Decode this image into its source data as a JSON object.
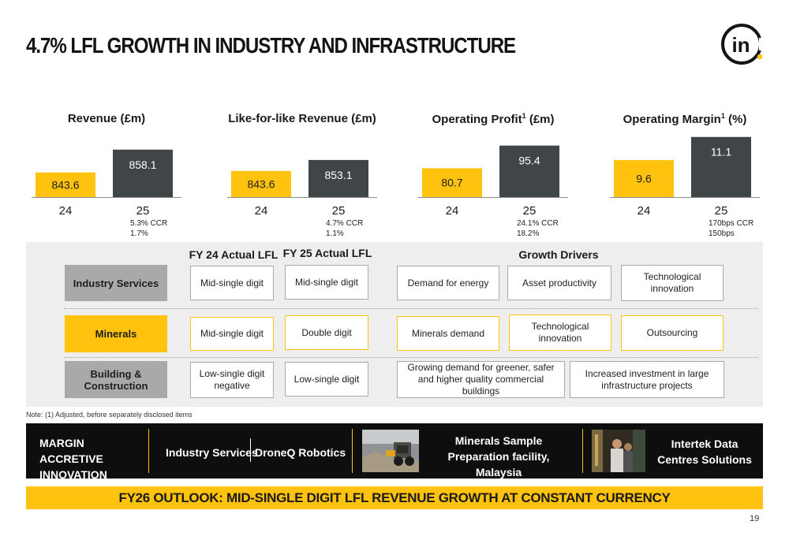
{
  "title": "4.7% LFL GROWTH IN INDUSTRY AND INFRASTRUCTURE",
  "logo": {
    "text": "in",
    "icon": "intertek-logo"
  },
  "colors": {
    "yellow": "#ffc20e",
    "dark": "#404547",
    "grey": "#a8a9ab",
    "panel": "#eeeeee"
  },
  "chart_data": [
    {
      "type": "bar",
      "title": "Revenue (£m)",
      "title_sup": "",
      "categories": [
        "24",
        "25"
      ],
      "values": [
        843.6,
        858.1
      ],
      "labels": [
        "843.6",
        "858.1"
      ],
      "notes": [
        "5.3% CCR",
        "1.7%"
      ]
    },
    {
      "type": "bar",
      "title": "Like-for-like Revenue (£m)",
      "title_sup": "",
      "categories": [
        "24",
        "25"
      ],
      "values": [
        843.6,
        853.1
      ],
      "labels": [
        "843.6",
        "853.1"
      ],
      "notes": [
        "4.7% CCR",
        "1.1%"
      ]
    },
    {
      "type": "bar",
      "title": "Operating Profit",
      "title_sup": "1",
      "title_suffix": " (£m)",
      "categories": [
        "24",
        "25"
      ],
      "values": [
        80.7,
        95.4
      ],
      "labels": [
        "80.7",
        "95.4"
      ],
      "notes": [
        "24.1% CCR",
        "18.2%"
      ]
    },
    {
      "type": "bar",
      "title": "Operating Margin",
      "title_sup": "1",
      "title_suffix": " (%)",
      "categories": [
        "24",
        "25"
      ],
      "values": [
        9.6,
        11.1
      ],
      "labels": [
        "9.6",
        "11.1"
      ],
      "notes": [
        "170bps CCR",
        "150bps"
      ]
    }
  ],
  "drivers": {
    "headers": {
      "fy24": "FY 24 Actual LFL",
      "fy25": "FY 25 Actual LFL",
      "growth": "Growth Drivers"
    },
    "rows": [
      {
        "segment": "Industry Services",
        "fy24": "Mid-single digit",
        "fy25": "Mid-single digit",
        "drivers": [
          "Demand for energy",
          "Asset productivity",
          "Technological innovation"
        ]
      },
      {
        "segment": "Minerals",
        "fy24": "Mid-single digit",
        "fy25": "Double digit",
        "drivers": [
          "Minerals demand",
          "Technological innovation",
          "Outsourcing"
        ]
      },
      {
        "segment": "Building & Construction",
        "fy24": "Low-single digit negative",
        "fy25": "Low-single digit",
        "drivers": [
          "Growing demand for greener, safer and higher quality commercial buildings",
          "Increased investment in large infrastructure projects"
        ]
      }
    ]
  },
  "note": "Note: (1) Adjusted, before separately disclosed items",
  "band": {
    "heading": "MARGIN ACCRETIVE INNOVATION",
    "item1": "Industry Services",
    "item2": "DroneQ Robotics",
    "item3": "Minerals Sample Preparation facility, Malaysia",
    "item4": "Intertek Data Centres Solutions"
  },
  "outlook": "FY26 OUTLOOK: MID-SINGLE DIGIT LFL REVENUE GROWTH AT CONSTANT CURRENCY",
  "page_number": "19"
}
